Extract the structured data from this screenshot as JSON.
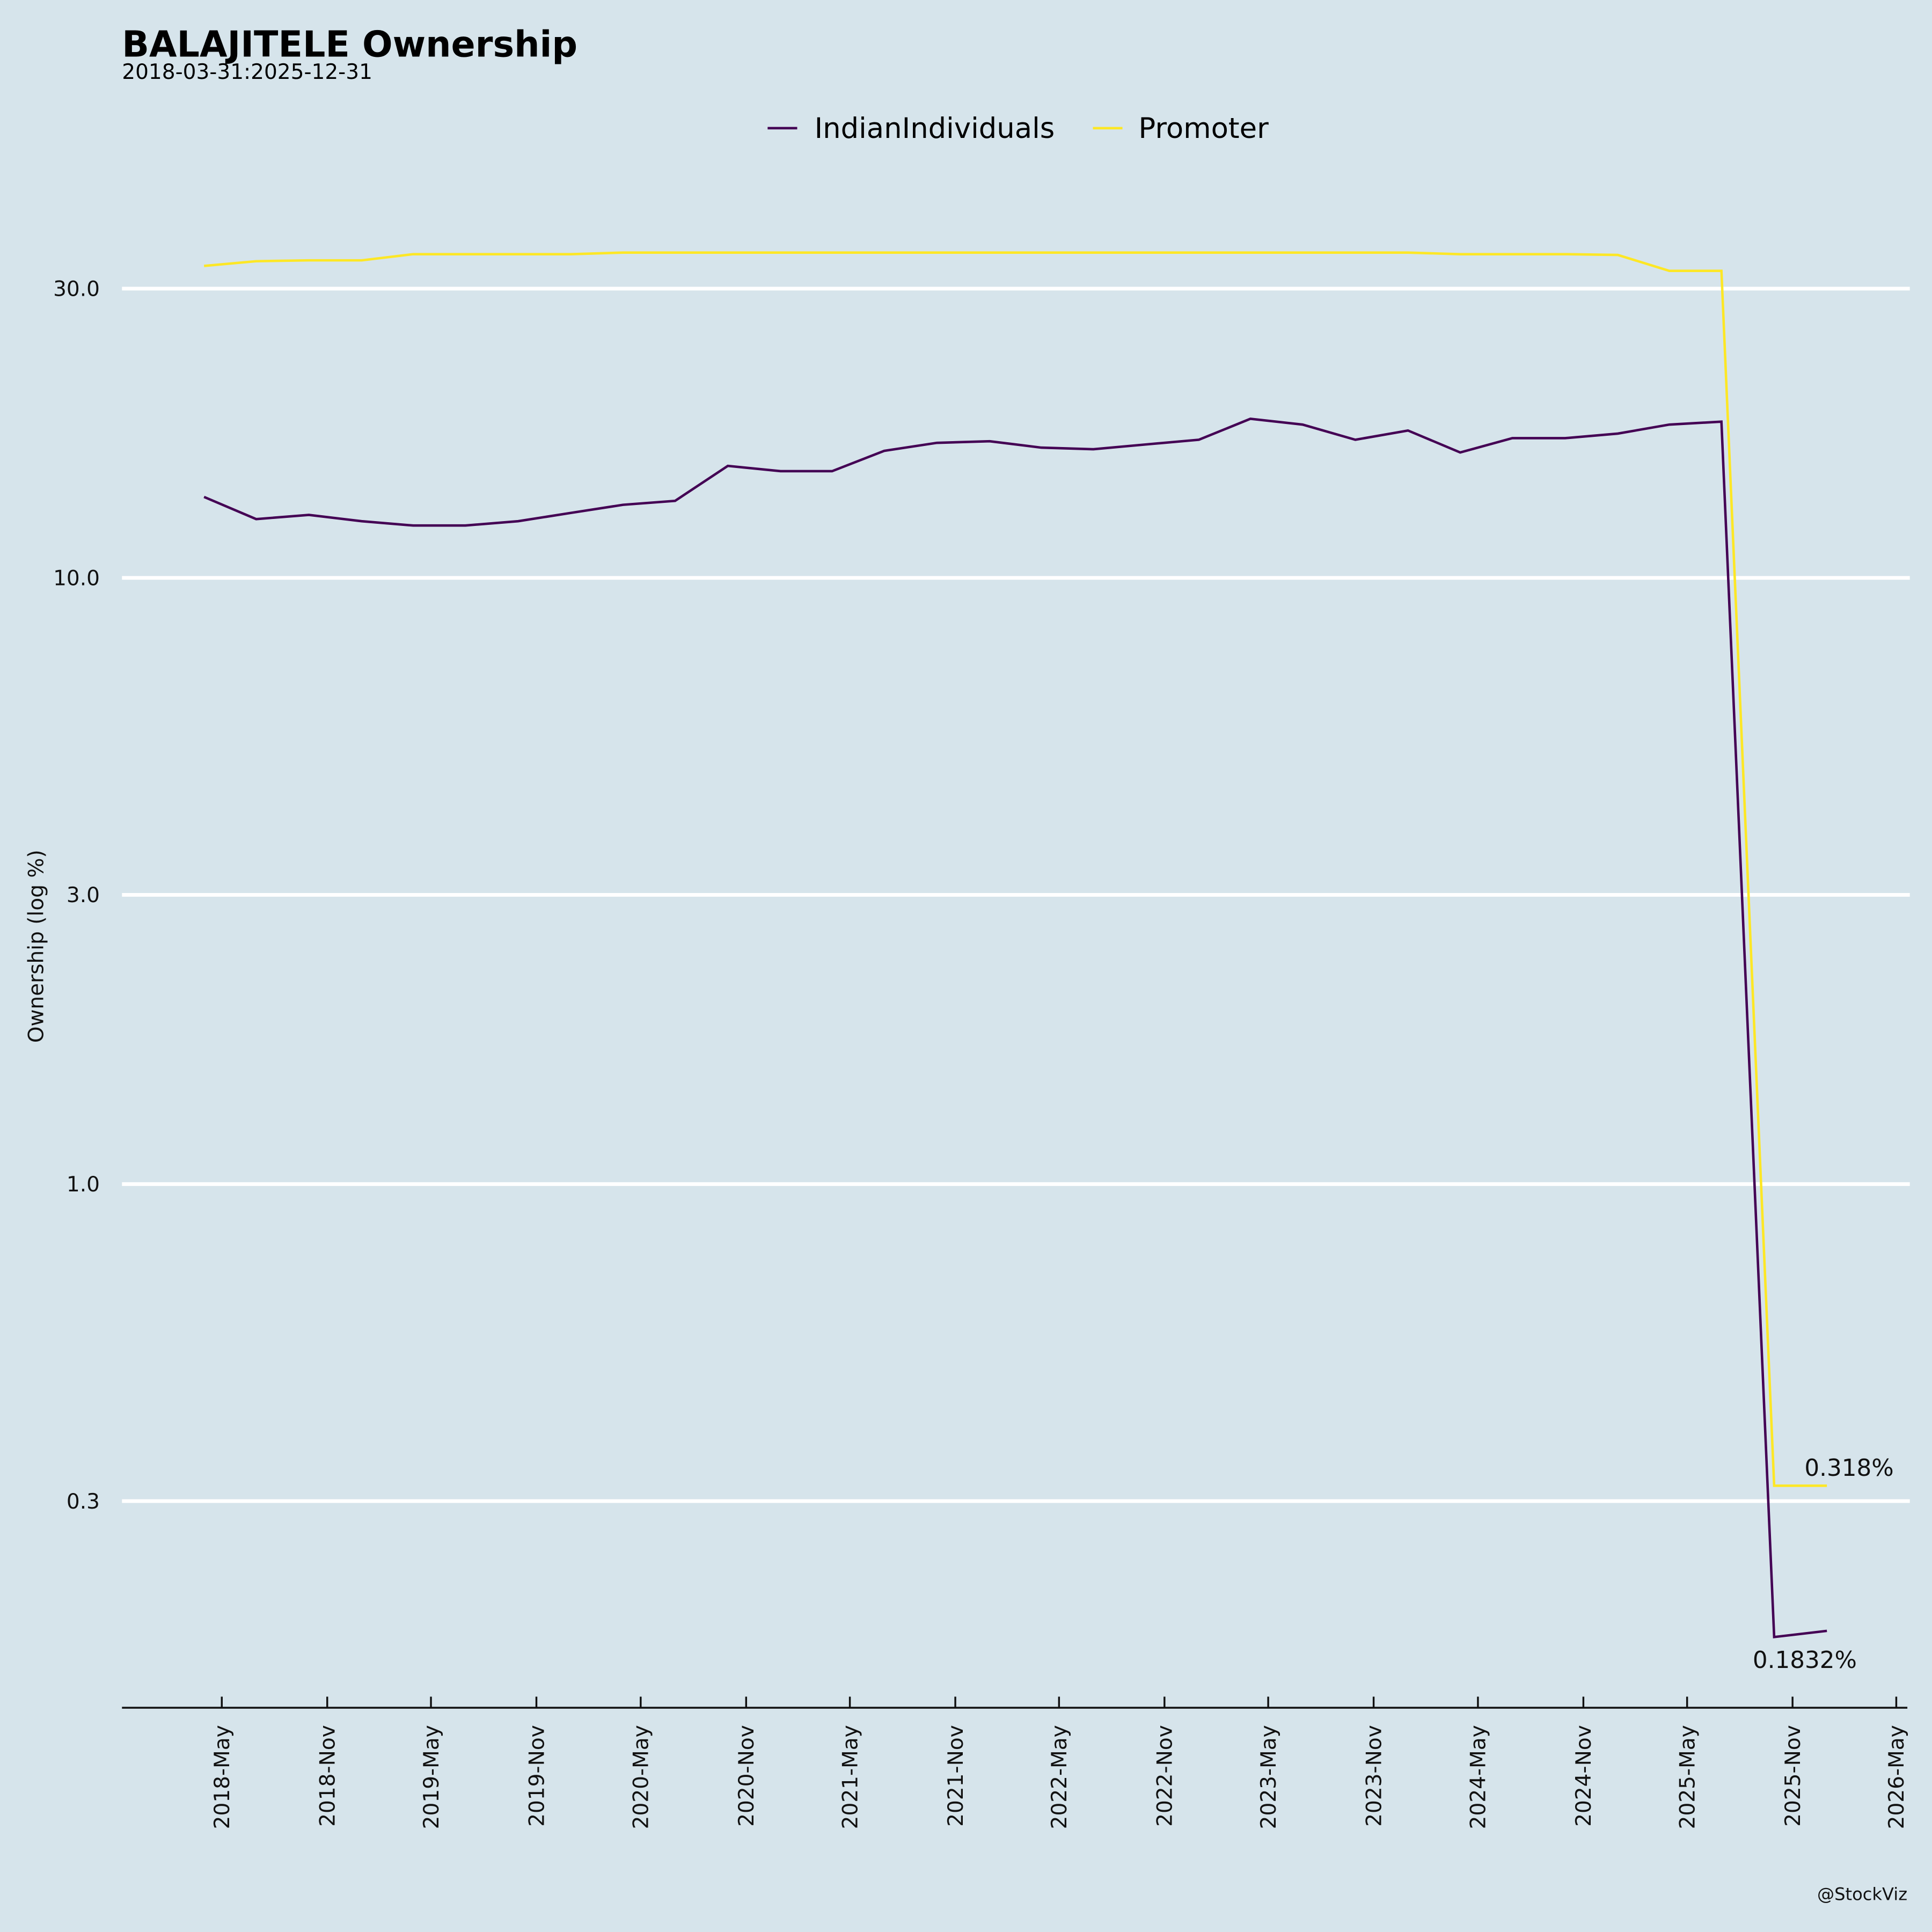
{
  "chart_data": {
    "type": "line",
    "title": "BALAJITELE Ownership",
    "subtitle": "2018-03-31:2025-12-31",
    "ylabel": "Ownership (log %)",
    "xlabel": "",
    "yscale": "log",
    "ylim": [
      0.14,
      60
    ],
    "yticks": [
      30.0,
      10.0,
      3.0,
      1.0,
      0.3
    ],
    "ytick_labels": [
      "30.0",
      "10.0",
      "3.0",
      "1.0",
      "0.3"
    ],
    "xtick_dates": [
      "2018-05-01",
      "2018-11-01",
      "2019-05-01",
      "2019-11-01",
      "2020-05-01",
      "2020-11-01",
      "2021-05-01",
      "2021-11-01",
      "2022-05-01",
      "2022-11-01",
      "2023-05-01",
      "2023-11-01",
      "2024-05-01",
      "2024-11-01",
      "2025-05-01",
      "2025-11-01",
      "2026-05-01"
    ],
    "xtick_labels": [
      "2018-May",
      "2018-Nov",
      "2019-May",
      "2019-Nov",
      "2020-May",
      "2020-Nov",
      "2021-May",
      "2021-Nov",
      "2022-May",
      "2022-Nov",
      "2023-May",
      "2023-Nov",
      "2024-May",
      "2024-Nov",
      "2025-May",
      "2025-Nov",
      "2026-May"
    ],
    "x": [
      "2018-03-31",
      "2018-06-30",
      "2018-09-30",
      "2018-12-31",
      "2019-03-31",
      "2019-06-30",
      "2019-09-30",
      "2019-12-31",
      "2020-03-31",
      "2020-06-30",
      "2020-09-30",
      "2020-12-31",
      "2021-03-31",
      "2021-06-30",
      "2021-09-30",
      "2021-12-31",
      "2022-03-31",
      "2022-06-30",
      "2022-09-30",
      "2022-12-31",
      "2023-03-31",
      "2023-06-30",
      "2023-09-30",
      "2023-12-31",
      "2024-03-31",
      "2024-06-30",
      "2024-09-30",
      "2024-12-31",
      "2025-03-31",
      "2025-06-30",
      "2025-09-30",
      "2025-12-31"
    ],
    "series": [
      {
        "name": "IndianIndividuals",
        "color": "#440154",
        "values": [
          13.6,
          12.5,
          12.7,
          12.4,
          12.2,
          12.2,
          12.4,
          12.8,
          13.2,
          13.4,
          15.3,
          15.0,
          15.0,
          16.2,
          16.7,
          16.8,
          16.4,
          16.3,
          16.6,
          16.9,
          18.3,
          17.9,
          16.9,
          17.5,
          16.1,
          17.0,
          17.0,
          17.3,
          17.9,
          18.1,
          0.179,
          0.1832
        ],
        "end_label": "0.1832%"
      },
      {
        "name": "Promoter",
        "color": "#fde725",
        "values": [
          32.7,
          33.3,
          33.4,
          33.4,
          34.2,
          34.2,
          34.2,
          34.2,
          34.4,
          34.4,
          34.4,
          34.4,
          34.4,
          34.4,
          34.4,
          34.4,
          34.4,
          34.4,
          34.4,
          34.4,
          34.4,
          34.4,
          34.4,
          34.4,
          34.2,
          34.2,
          34.2,
          34.1,
          32.1,
          32.1,
          0.318,
          0.318
        ],
        "end_label": "0.318%"
      }
    ],
    "grid": true,
    "legend": "top-center",
    "watermark": "@StockViz"
  }
}
